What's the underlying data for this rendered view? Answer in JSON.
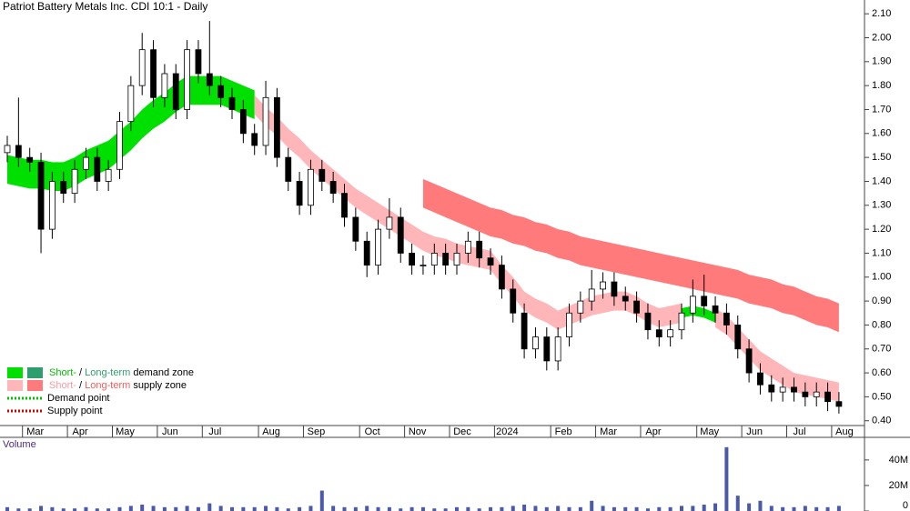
{
  "chart_data": {
    "type": "candlestick",
    "title": "Patriot Battery Metals Inc. CDI 10:1 - Daily",
    "categories": [
      null,
      null,
      "Mar",
      null,
      null,
      null,
      "Apr",
      null,
      null,
      null,
      "May",
      null,
      null,
      null,
      "Jun",
      null,
      null,
      null,
      "Jul",
      null,
      null,
      null,
      null,
      "Aug",
      null,
      null,
      null,
      "Sep",
      null,
      null,
      null,
      null,
      "Oct",
      null,
      null,
      null,
      "Nov",
      null,
      null,
      null,
      "Dec",
      null,
      null,
      null,
      "2024",
      null,
      null,
      null,
      null,
      "Feb",
      null,
      null,
      null,
      "Mar",
      null,
      null,
      null,
      "Apr",
      null,
      null,
      null,
      null,
      "May",
      null,
      null,
      null,
      "Jun",
      null,
      null,
      null,
      "Jul",
      null,
      null,
      null,
      "Aug"
    ],
    "open": [
      1.52,
      1.55,
      1.5,
      1.48,
      1.2,
      1.4,
      1.35,
      1.45,
      1.5,
      1.4,
      1.45,
      1.65,
      1.8,
      1.95,
      1.75,
      1.85,
      1.7,
      1.95,
      1.85,
      1.8,
      1.75,
      1.7,
      1.6,
      1.55,
      1.75,
      1.5,
      1.4,
      1.3,
      1.45,
      1.4,
      1.35,
      1.25,
      1.15,
      1.05,
      1.2,
      1.25,
      1.1,
      1.05,
      1.05,
      1.1,
      1.05,
      1.1,
      1.15,
      1.08,
      1.05,
      0.95,
      0.85,
      0.7,
      0.75,
      0.65,
      0.75,
      0.85,
      0.9,
      0.95,
      0.98,
      0.92,
      0.9,
      0.85,
      0.78,
      0.75,
      0.78,
      0.85,
      0.92,
      0.88,
      0.85,
      0.8,
      0.7,
      0.6,
      0.55,
      0.52,
      0.54,
      0.52,
      0.5,
      0.52,
      0.48
    ],
    "high": [
      1.59,
      1.75,
      1.54,
      1.52,
      1.44,
      1.44,
      1.49,
      1.54,
      1.54,
      1.49,
      1.69,
      1.84,
      2.02,
      1.99,
      1.89,
      1.89,
      1.99,
      1.99,
      2.07,
      1.84,
      1.79,
      1.74,
      1.64,
      1.82,
      1.79,
      1.54,
      1.44,
      1.49,
      1.49,
      1.44,
      1.39,
      1.29,
      1.19,
      1.24,
      1.33,
      1.29,
      1.14,
      1.09,
      1.14,
      1.14,
      1.14,
      1.19,
      1.19,
      1.12,
      1.09,
      0.99,
      0.89,
      0.79,
      0.79,
      0.79,
      0.89,
      0.94,
      1.03,
      1.02,
      1.02,
      0.96,
      0.94,
      0.89,
      0.82,
      0.82,
      0.89,
      0.99,
      1.01,
      0.92,
      0.89,
      0.84,
      0.74,
      0.64,
      0.59,
      0.58,
      0.58,
      0.56,
      0.56,
      0.56,
      0.52
    ],
    "low": [
      1.48,
      1.46,
      1.44,
      1.1,
      1.16,
      1.31,
      1.31,
      1.41,
      1.36,
      1.36,
      1.41,
      1.61,
      1.76,
      1.71,
      1.71,
      1.66,
      1.66,
      1.81,
      1.76,
      1.71,
      1.66,
      1.56,
      1.51,
      1.51,
      1.46,
      1.36,
      1.26,
      1.26,
      1.36,
      1.31,
      1.21,
      1.11,
      1.0,
      1.01,
      1.16,
      1.06,
      1.01,
      1.01,
      1.01,
      1.01,
      1.01,
      1.06,
      1.04,
      1.01,
      0.91,
      0.81,
      0.66,
      0.66,
      0.61,
      0.61,
      0.71,
      0.81,
      0.86,
      0.91,
      0.88,
      0.86,
      0.81,
      0.74,
      0.71,
      0.71,
      0.74,
      0.81,
      0.84,
      0.81,
      0.76,
      0.66,
      0.56,
      0.51,
      0.48,
      0.48,
      0.48,
      0.46,
      0.46,
      0.44,
      0.43
    ],
    "close": [
      1.55,
      1.5,
      1.48,
      1.2,
      1.4,
      1.35,
      1.45,
      1.5,
      1.4,
      1.45,
      1.65,
      1.8,
      1.95,
      1.75,
      1.85,
      1.7,
      1.95,
      1.85,
      1.8,
      1.75,
      1.7,
      1.6,
      1.55,
      1.75,
      1.5,
      1.4,
      1.3,
      1.45,
      1.4,
      1.35,
      1.25,
      1.15,
      1.05,
      1.2,
      1.25,
      1.1,
      1.05,
      1.05,
      1.1,
      1.05,
      1.1,
      1.15,
      1.08,
      1.05,
      0.95,
      0.85,
      0.7,
      0.75,
      0.65,
      0.75,
      0.85,
      0.9,
      0.95,
      0.98,
      0.92,
      0.9,
      0.85,
      0.78,
      0.75,
      0.78,
      0.85,
      0.92,
      0.88,
      0.85,
      0.8,
      0.7,
      0.6,
      0.55,
      0.52,
      0.54,
      0.52,
      0.5,
      0.52,
      0.48,
      0.46
    ],
    "up_color": "#ffffff",
    "down_color": "#000000",
    "bands": [
      {
        "color": "#00e000",
        "upper": [
          1.51,
          1.5,
          1.49,
          1.49,
          1.48,
          1.48,
          1.5,
          1.53,
          1.55,
          1.57,
          1.61,
          1.65,
          1.7,
          1.74,
          1.77,
          1.81,
          1.84,
          1.84,
          1.84,
          1.84,
          1.82,
          1.8,
          1.78,
          null,
          null,
          null,
          null,
          null,
          null,
          null,
          null,
          null,
          null,
          null,
          null,
          null,
          null,
          null,
          null,
          null,
          null,
          null,
          null,
          null,
          null,
          null,
          null,
          null,
          null,
          null,
          null,
          null,
          null,
          null,
          null,
          null,
          null,
          null,
          null,
          null,
          0.87,
          0.88,
          0.87,
          0.85,
          null,
          null,
          null,
          null,
          null,
          null,
          null,
          null,
          null,
          null,
          null
        ],
        "lower": [
          1.39,
          1.38,
          1.37,
          1.37,
          1.36,
          1.36,
          1.38,
          1.41,
          1.43,
          1.45,
          1.49,
          1.53,
          1.58,
          1.62,
          1.65,
          1.69,
          1.72,
          1.72,
          1.72,
          1.72,
          1.7,
          1.68,
          1.66,
          null,
          null,
          null,
          null,
          null,
          null,
          null,
          null,
          null,
          null,
          null,
          null,
          null,
          null,
          null,
          null,
          null,
          null,
          null,
          null,
          null,
          null,
          null,
          null,
          null,
          null,
          null,
          null,
          null,
          null,
          null,
          null,
          null,
          null,
          null,
          null,
          null,
          0.83,
          0.84,
          0.83,
          0.81,
          null,
          null,
          null,
          null,
          null,
          null,
          null,
          null,
          null,
          null,
          null
        ]
      },
      {
        "color": "#ffb6b9",
        "upper": [
          null,
          null,
          null,
          null,
          null,
          null,
          null,
          null,
          null,
          null,
          null,
          null,
          null,
          null,
          null,
          null,
          null,
          null,
          null,
          null,
          null,
          null,
          1.76,
          1.71,
          1.67,
          1.62,
          1.58,
          1.53,
          1.49,
          1.45,
          1.41,
          1.37,
          1.34,
          1.31,
          1.28,
          1.25,
          1.22,
          1.19,
          1.17,
          1.16,
          1.14,
          1.13,
          1.12,
          1.11,
          1.05,
          1.0,
          0.94,
          0.91,
          0.89,
          0.86,
          0.88,
          0.9,
          0.92,
          0.93,
          0.94,
          0.94,
          0.92,
          0.89,
          0.87,
          0.88,
          0.89,
          null,
          null,
          0.87,
          0.84,
          0.79,
          0.74,
          0.69,
          0.66,
          0.63,
          0.6,
          0.59,
          0.58,
          0.57,
          0.56
        ],
        "lower": [
          null,
          null,
          null,
          null,
          null,
          null,
          null,
          null,
          null,
          null,
          null,
          null,
          null,
          null,
          null,
          null,
          null,
          null,
          null,
          null,
          null,
          null,
          1.68,
          1.63,
          1.59,
          1.54,
          1.5,
          1.45,
          1.41,
          1.37,
          1.33,
          1.29,
          1.26,
          1.23,
          1.2,
          1.17,
          1.14,
          1.11,
          1.09,
          1.08,
          1.06,
          1.05,
          1.04,
          1.03,
          0.97,
          0.92,
          0.86,
          0.83,
          0.81,
          0.78,
          0.8,
          0.82,
          0.84,
          0.85,
          0.86,
          0.86,
          0.84,
          0.81,
          0.79,
          0.8,
          0.81,
          null,
          null,
          0.79,
          0.76,
          0.71,
          0.66,
          0.61,
          0.58,
          0.55,
          0.52,
          0.51,
          0.5,
          0.49,
          0.48
        ]
      },
      {
        "color": "#ff7b7b",
        "upper": [
          null,
          null,
          null,
          null,
          null,
          null,
          null,
          null,
          null,
          null,
          null,
          null,
          null,
          null,
          null,
          null,
          null,
          null,
          null,
          null,
          null,
          null,
          null,
          null,
          null,
          null,
          null,
          null,
          null,
          null,
          null,
          null,
          null,
          null,
          null,
          null,
          null,
          1.41,
          1.39,
          1.37,
          1.35,
          1.33,
          1.31,
          1.29,
          1.28,
          1.26,
          1.25,
          1.23,
          1.22,
          1.2,
          1.19,
          1.17,
          1.16,
          1.15,
          1.14,
          1.13,
          1.12,
          1.11,
          1.1,
          1.09,
          1.08,
          1.07,
          1.06,
          1.05,
          1.04,
          1.03,
          1.01,
          1.0,
          0.99,
          0.97,
          0.96,
          0.94,
          0.92,
          0.91,
          0.89
        ],
        "lower": [
          null,
          null,
          null,
          null,
          null,
          null,
          null,
          null,
          null,
          null,
          null,
          null,
          null,
          null,
          null,
          null,
          null,
          null,
          null,
          null,
          null,
          null,
          null,
          null,
          null,
          null,
          null,
          null,
          null,
          null,
          null,
          null,
          null,
          null,
          null,
          null,
          null,
          1.29,
          1.27,
          1.25,
          1.23,
          1.21,
          1.19,
          1.17,
          1.16,
          1.14,
          1.13,
          1.11,
          1.1,
          1.08,
          1.07,
          1.05,
          1.04,
          1.03,
          1.02,
          1.01,
          1.0,
          0.99,
          0.98,
          0.97,
          0.96,
          0.95,
          0.94,
          0.93,
          0.92,
          0.91,
          0.89,
          0.88,
          0.87,
          0.85,
          0.84,
          0.82,
          0.8,
          0.79,
          0.77
        ]
      }
    ],
    "ylim": [
      0.38,
      2.15
    ],
    "yticks": [
      {
        "value": 0.4,
        "label": "0.40"
      },
      {
        "value": 0.5,
        "label": "0.50"
      },
      {
        "value": 0.6,
        "label": "0.60"
      },
      {
        "value": 0.7,
        "label": "0.70"
      },
      {
        "value": 0.8,
        "label": "0.80"
      },
      {
        "value": 0.9,
        "label": "0.90"
      },
      {
        "value": 1.0,
        "label": "1.00"
      },
      {
        "value": 1.1,
        "label": "1.10"
      },
      {
        "value": 1.2,
        "label": "1.20"
      },
      {
        "value": 1.3,
        "label": "1.30"
      },
      {
        "value": 1.4,
        "label": "1.40"
      },
      {
        "value": 1.5,
        "label": "1.50"
      },
      {
        "value": 1.6,
        "label": "1.60"
      },
      {
        "value": 1.7,
        "label": "1.70"
      },
      {
        "value": 1.8,
        "label": "1.80"
      },
      {
        "value": 1.9,
        "label": "1.90"
      },
      {
        "value": 2.0,
        "label": "2.00"
      },
      {
        "value": 2.1,
        "label": "2.10"
      }
    ],
    "volume": {
      "label": "Volume",
      "color": "#4a5aa8",
      "values": [
        3,
        2,
        2,
        4,
        3,
        2,
        2,
        3,
        2,
        2,
        3,
        4,
        5,
        4,
        3,
        3,
        4,
        3,
        6,
        4,
        3,
        3,
        3,
        4,
        3,
        2,
        3,
        4,
        16,
        4,
        3,
        3,
        4,
        3,
        3,
        2,
        3,
        3,
        2,
        2,
        3,
        3,
        2,
        3,
        3,
        4,
        5,
        4,
        3,
        4,
        3,
        3,
        8,
        4,
        3,
        3,
        3,
        2,
        3,
        3,
        4,
        4,
        5,
        6,
        50,
        12,
        6,
        8,
        4,
        3,
        3,
        4,
        3,
        3,
        4
      ],
      "ylim": [
        0,
        57
      ],
      "yticks": [
        0,
        {
          "value": 20,
          "label": "20M"
        },
        {
          "value": 40,
          "label": "40M"
        }
      ]
    },
    "legend": [
      {
        "marker": "box",
        "swatches": [
          "#00e000",
          "#2e9e6e"
        ],
        "parts": [
          {
            "text": "Short-",
            "color": "#00c000"
          },
          {
            "text": " / ",
            "color": "#000000"
          },
          {
            "text": "Long-term",
            "color": "#2e9e6e"
          },
          {
            "text": " demand zone",
            "color": "#000000"
          }
        ]
      },
      {
        "marker": "box",
        "swatches": [
          "#ffb6b9",
          "#ff7b7b"
        ],
        "parts": [
          {
            "text": "Short-",
            "color": "#ff9aa0"
          },
          {
            "text": " / ",
            "color": "#000000"
          },
          {
            "text": "Long-term",
            "color": "#ff5a5a"
          },
          {
            "text": " supply zone",
            "color": "#000000"
          }
        ]
      },
      {
        "marker": "dotted",
        "swatches": [
          "#00c000"
        ],
        "parts": [
          {
            "text": "Demand point",
            "color": "#000000"
          }
        ]
      },
      {
        "marker": "dotted",
        "swatches": [
          "#d00000"
        ],
        "parts": [
          {
            "text": "Supply point",
            "color": "#000000"
          }
        ]
      }
    ]
  }
}
